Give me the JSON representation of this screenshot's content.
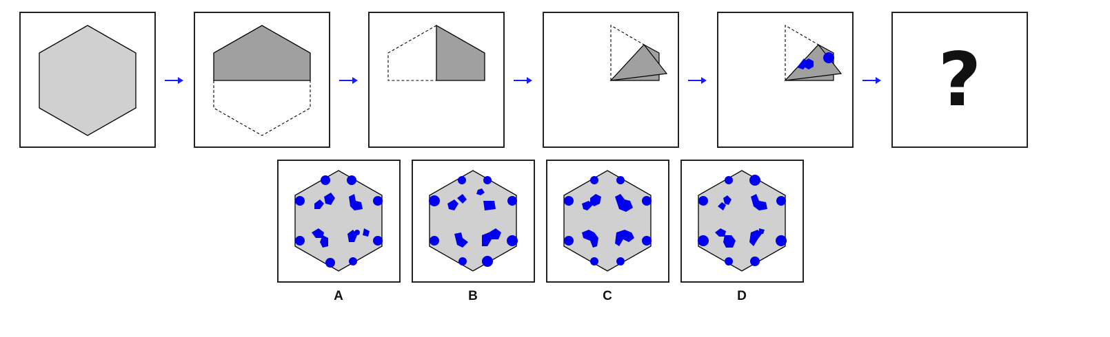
{
  "puzzle": {
    "steps": [
      {
        "name": "full-hexagon"
      },
      {
        "name": "fold-top-half"
      },
      {
        "name": "fold-left-half"
      },
      {
        "name": "fold-triangle"
      },
      {
        "name": "punch-holes"
      },
      {
        "name": "unknown-result"
      }
    ],
    "question_mark": "?",
    "arrow_color": "#1a1aff",
    "hex_fill": "#d0d0d0",
    "fold_fill": "#a0a0a0",
    "hole_color": "#0000ee"
  },
  "options": [
    {
      "label": "A"
    },
    {
      "label": "B"
    },
    {
      "label": "C"
    },
    {
      "label": "D"
    }
  ]
}
